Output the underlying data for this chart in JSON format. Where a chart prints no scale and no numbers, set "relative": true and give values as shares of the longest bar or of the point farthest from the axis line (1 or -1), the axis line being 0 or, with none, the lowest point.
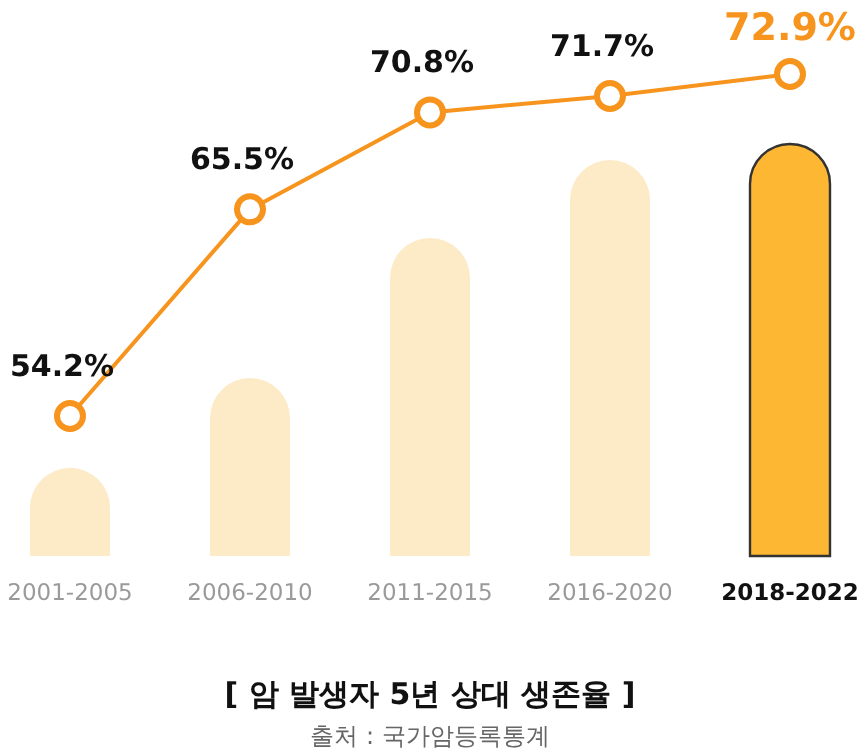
{
  "chart_data": [
    {
      "type": "bar",
      "relative": true,
      "title": "[ 암 발생자 5년 상대 생존율 ]",
      "annotations": [
        "출처 : 국가암등록통계"
      ],
      "categories": [
        "2001-2005",
        "2006-2010",
        "2011-2015",
        "2016-2020",
        "2018-2022"
      ],
      "series": [
        {
          "colors": [
            "#fdebc8",
            "#fdebc8",
            "#fdebc8",
            "#fdebc8",
            "#fdb732"
          ],
          "values": [
            0.214,
            0.432,
            0.772,
            0.961,
            1
          ]
        }
      ]
    },
    {
      "type": "line",
      "categories": [
        null,
        null,
        null,
        null,
        null
      ],
      "marker": "circle",
      "series": [
        {
          "color": "#f7941d",
          "values": [
            54.2,
            65.5,
            70.8,
            71.7,
            72.9
          ],
          "value_labels": [
            "54.2%",
            "65.5%",
            "70.8%",
            "71.7%",
            "72.9%"
          ]
        }
      ]
    }
  ]
}
